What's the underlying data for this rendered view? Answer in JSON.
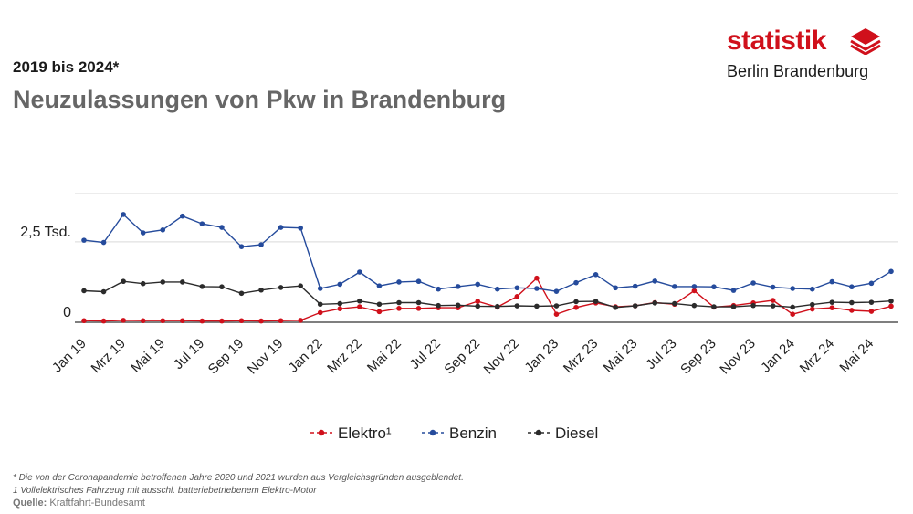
{
  "header": {
    "subtitle": "2019 bis 2024*",
    "title": "Neuzulassungen von Pkw in Brandenburg"
  },
  "logo": {
    "word": "statistik",
    "sub": "Berlin Brandenburg",
    "color": "#d0101b",
    "icon": "stacked-diamond-icon"
  },
  "footnotes": {
    "note1": "* Die von der Coronapandemie betroffenen Jahre 2020 und 2021 wurden aus Vergleichsgründen ausgeblendet.",
    "note2": "1 Vollelektrisches Fahrzeug mit ausschl. batteriebetriebenem Elektro-Motor",
    "source_label": "Quelle:",
    "source_text": "Kraftfahrt-Bundesamt"
  },
  "chart_data": {
    "type": "line",
    "categories": [
      "Jan 19",
      "Feb 19",
      "Mrz 19",
      "Apr 19",
      "Mai 19",
      "Jun 19",
      "Jul 19",
      "Aug 19",
      "Sep 19",
      "Okt 19",
      "Nov 19",
      "Dez 19",
      "Jan 22",
      "Feb 22",
      "Mrz 22",
      "Apr 22",
      "Mai 22",
      "Jun 22",
      "Jul 22",
      "Aug 22",
      "Sep 22",
      "Okt 22",
      "Nov 22",
      "Dez 22",
      "Jan 23",
      "Feb 23",
      "Mrz 23",
      "Apr 23",
      "Mai 23",
      "Jun 23",
      "Jul 23",
      "Aug 23",
      "Sep 23",
      "Okt 23",
      "Nov 23",
      "Dez 23",
      "Jan 24",
      "Feb 24",
      "Mrz 24",
      "Apr 24",
      "Mai 24",
      "Jun 24"
    ],
    "tick_labels": [
      "Jan 19",
      "Mrz 19",
      "Mai 19",
      "Jul 19",
      "Sep 19",
      "Nov 19",
      "Jan 22",
      "Mrz 22",
      "Mai 22",
      "Jul 22",
      "Sep 22",
      "Nov 22",
      "Jan 23",
      "Mrz 23",
      "Mai 23",
      "Jul 23",
      "Sep 23",
      "Nov 23",
      "Jan 24",
      "Mrz 24",
      "Mai 24"
    ],
    "y_ticks": [
      {
        "value": 0,
        "label": "0"
      },
      {
        "value": 2500,
        "label": "2,5 Tsd."
      }
    ],
    "ylim": [
      0,
      4000
    ],
    "grid": true,
    "legend_position": "bottom",
    "series": [
      {
        "name": "Elektro¹",
        "color": "#d0101b",
        "values": [
          50,
          40,
          60,
          50,
          50,
          50,
          40,
          40,
          50,
          40,
          50,
          60,
          300,
          420,
          480,
          330,
          430,
          430,
          450,
          450,
          650,
          470,
          800,
          1370,
          250,
          460,
          600,
          480,
          510,
          610,
          560,
          980,
          470,
          520,
          600,
          680,
          250,
          410,
          450,
          370,
          340,
          500
        ]
      },
      {
        "name": "Benzin",
        "color": "#254b9c",
        "values": [
          2550,
          2480,
          3350,
          2780,
          2870,
          3300,
          3060,
          2950,
          2350,
          2410,
          2950,
          2930,
          1050,
          1180,
          1560,
          1130,
          1250,
          1270,
          1030,
          1110,
          1180,
          1030,
          1070,
          1050,
          960,
          1230,
          1480,
          1070,
          1120,
          1280,
          1110,
          1110,
          1100,
          990,
          1220,
          1090,
          1050,
          1030,
          1260,
          1100,
          1210,
          1580
        ]
      },
      {
        "name": "Diesel",
        "color": "#2b2b2b",
        "values": [
          980,
          950,
          1270,
          1200,
          1250,
          1250,
          1110,
          1100,
          900,
          1000,
          1080,
          1130,
          560,
          580,
          660,
          560,
          610,
          610,
          520,
          530,
          500,
          490,
          510,
          500,
          510,
          640,
          650,
          460,
          510,
          600,
          580,
          520,
          480,
          480,
          520,
          510,
          470,
          550,
          620,
          610,
          620,
          660
        ]
      }
    ]
  }
}
